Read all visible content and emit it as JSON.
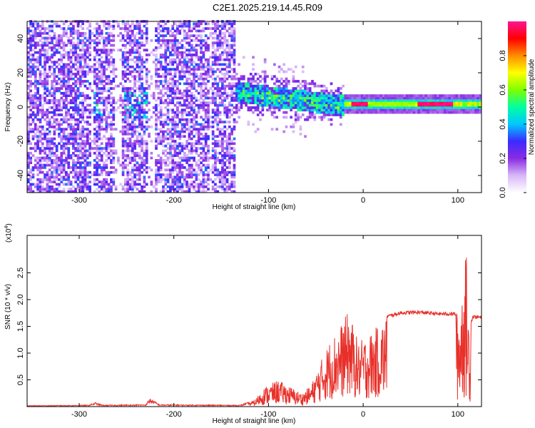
{
  "title": "C2E1.2025.219.14.45.R09",
  "chart_data": [
    {
      "type": "heatmap",
      "xlabel": "Height of straight line (km)",
      "ylabel": "Frequency (Hz)",
      "xlim": [
        -355,
        125
      ],
      "ylim": [
        -50,
        50
      ],
      "xticks": [
        -300,
        -200,
        -100,
        0,
        100
      ],
      "yticks": [
        -40,
        -20,
        0,
        20,
        40
      ],
      "colorbar": {
        "label": "Normalized spectral amplitude",
        "range": [
          0,
          1
        ],
        "ticks": [
          0.0,
          0.2,
          0.4,
          0.6,
          0.8
        ],
        "colormap": [
          "#ffffff",
          "#d8b8f8",
          "#8a2be2",
          "#3b2bff",
          "#00c8ff",
          "#00ffa0",
          "#7fff00",
          "#ffff00",
          "#ff8c00",
          "#ff0000",
          "#ff1493"
        ]
      },
      "regions": [
        {
          "x_range": [
            -355,
            -135
          ],
          "freq_spread": [
            -50,
            50
          ],
          "amplitude": [
            0.05,
            0.35
          ],
          "note": ""
        },
        {
          "x_range": [
            -135,
            -20
          ],
          "freq_center_start": 8,
          "freq_center_end": 0,
          "amplitude": [
            0.2,
            0.55
          ]
        },
        {
          "x_range": [
            -20,
            125
          ],
          "freq_center": 1,
          "amplitude": [
            0.5,
            1.0
          ]
        }
      ]
    },
    {
      "type": "line",
      "xlabel": "Height of straight line (km)",
      "ylabel": "SNR (10 * v/v)",
      "y_multiplier": "(x10",
      "y_multiplier_exp": "4",
      "xlim": [
        -355,
        125
      ],
      "ylim": [
        0,
        3.2
      ],
      "xticks": [
        -300,
        -200,
        -100,
        0,
        100
      ],
      "yticks": [
        0.5,
        1.0,
        1.5,
        2.0,
        2.5
      ],
      "series": [
        {
          "color": "#e8302a",
          "envelope": [
            [
              -355,
              0.02
            ],
            [
              -290,
              0.03
            ],
            [
              -283,
              0.08
            ],
            [
              -275,
              0.03
            ],
            [
              -230,
              0.04
            ],
            [
              -225,
              0.16
            ],
            [
              -215,
              0.04
            ],
            [
              -130,
              0.03
            ],
            [
              -115,
              0.12
            ],
            [
              -105,
              0.35
            ],
            [
              -90,
              0.5
            ],
            [
              -80,
              0.4
            ],
            [
              -65,
              0.25
            ],
            [
              -55,
              0.4
            ],
            [
              -45,
              0.85
            ],
            [
              -35,
              1.25
            ],
            [
              -25,
              1.5
            ],
            [
              -15,
              1.8
            ],
            [
              -5,
              1.2
            ],
            [
              5,
              1.35
            ],
            [
              15,
              1.5
            ],
            [
              25,
              1.7
            ],
            [
              40,
              1.77
            ],
            [
              60,
              1.78
            ],
            [
              80,
              1.75
            ],
            [
              98,
              1.75
            ],
            [
              102,
              1.9
            ],
            [
              106,
              2.6
            ],
            [
              109,
              2.9
            ],
            [
              112,
              1.5
            ],
            [
              116,
              1.7
            ],
            [
              125,
              1.68
            ]
          ]
        }
      ]
    }
  ]
}
